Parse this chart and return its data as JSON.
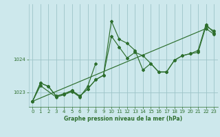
{
  "xlabel": "Graphe pression niveau de la mer (hPa)",
  "x_ticks": [
    0,
    1,
    2,
    3,
    4,
    5,
    6,
    7,
    8,
    9,
    10,
    11,
    12,
    13,
    14,
    15,
    16,
    17,
    18,
    19,
    20,
    21,
    22,
    23
  ],
  "xlim": [
    -0.5,
    23.5
  ],
  "ylim": [
    1022.55,
    1025.7
  ],
  "y_ticks": [
    1023,
    1024
  ],
  "bg_color": "#cde8ec",
  "grid_color": "#9dc4c8",
  "line_color": "#2d6e2d",
  "marker_color": "#2d6e2d",
  "series1_x": [
    0,
    1,
    2,
    3,
    4,
    5,
    6,
    7,
    8,
    9,
    10,
    11,
    12,
    13,
    14,
    15,
    16,
    17,
    18,
    19,
    20,
    21,
    22,
    23
  ],
  "series1_y": [
    1022.72,
    1023.28,
    1023.18,
    1022.88,
    1022.95,
    1023.05,
    1022.88,
    1023.1,
    1023.38,
    1023.52,
    1024.72,
    1024.38,
    1024.05,
    1024.22,
    1024.12,
    1023.88,
    1023.62,
    1023.62,
    1023.98,
    1024.12,
    1024.18,
    1024.22,
    1025.02,
    1024.88
  ],
  "series2_x": [
    0,
    1,
    2,
    3,
    4,
    5,
    6,
    7,
    8,
    9,
    10,
    11,
    12,
    13,
    14,
    15,
    16,
    17,
    18,
    19,
    20,
    21,
    22,
    23
  ],
  "series2_y": [
    1022.72,
    1023.28,
    1023.18,
    1022.88,
    1022.95,
    1023.05,
    1022.88,
    1023.1,
    1023.38,
    1023.52,
    1025.18,
    1024.62,
    1024.5,
    1024.28,
    1023.68,
    1023.88,
    1023.62,
    1023.62,
    1023.98,
    1024.12,
    1024.18,
    1024.28,
    1025.08,
    1024.82
  ],
  "series3_x": [
    0,
    1,
    3,
    4,
    5,
    6,
    7,
    8
  ],
  "series3_y": [
    1022.72,
    1023.2,
    1022.85,
    1022.92,
    1023.02,
    1022.85,
    1023.18,
    1023.88
  ],
  "series4_x": [
    0,
    22,
    23
  ],
  "series4_y": [
    1022.72,
    1024.95,
    1024.78
  ]
}
